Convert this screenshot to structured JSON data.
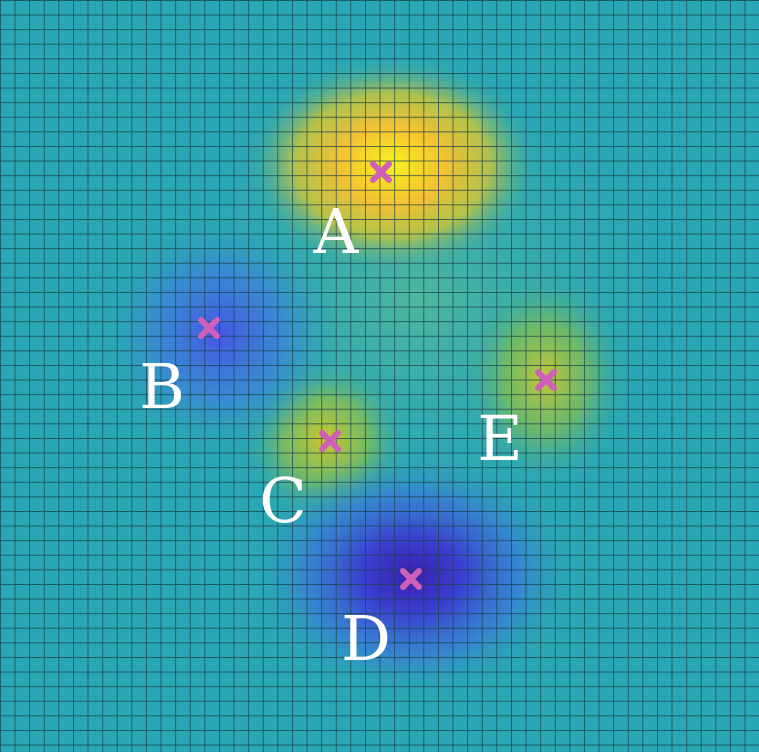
{
  "colors": {
    "background": "#2aa7b4",
    "grid_line": "#1b3f4a",
    "marker": "#cf5fb8",
    "label": "#ffffff"
  },
  "points": [
    {
      "id": "A",
      "label": "A",
      "kind": "peak"
    },
    {
      "id": "B",
      "label": "B",
      "kind": "well"
    },
    {
      "id": "C",
      "label": "C",
      "kind": "peak"
    },
    {
      "id": "D",
      "label": "D",
      "kind": "well"
    },
    {
      "id": "E",
      "label": "E",
      "kind": "peak"
    }
  ]
}
